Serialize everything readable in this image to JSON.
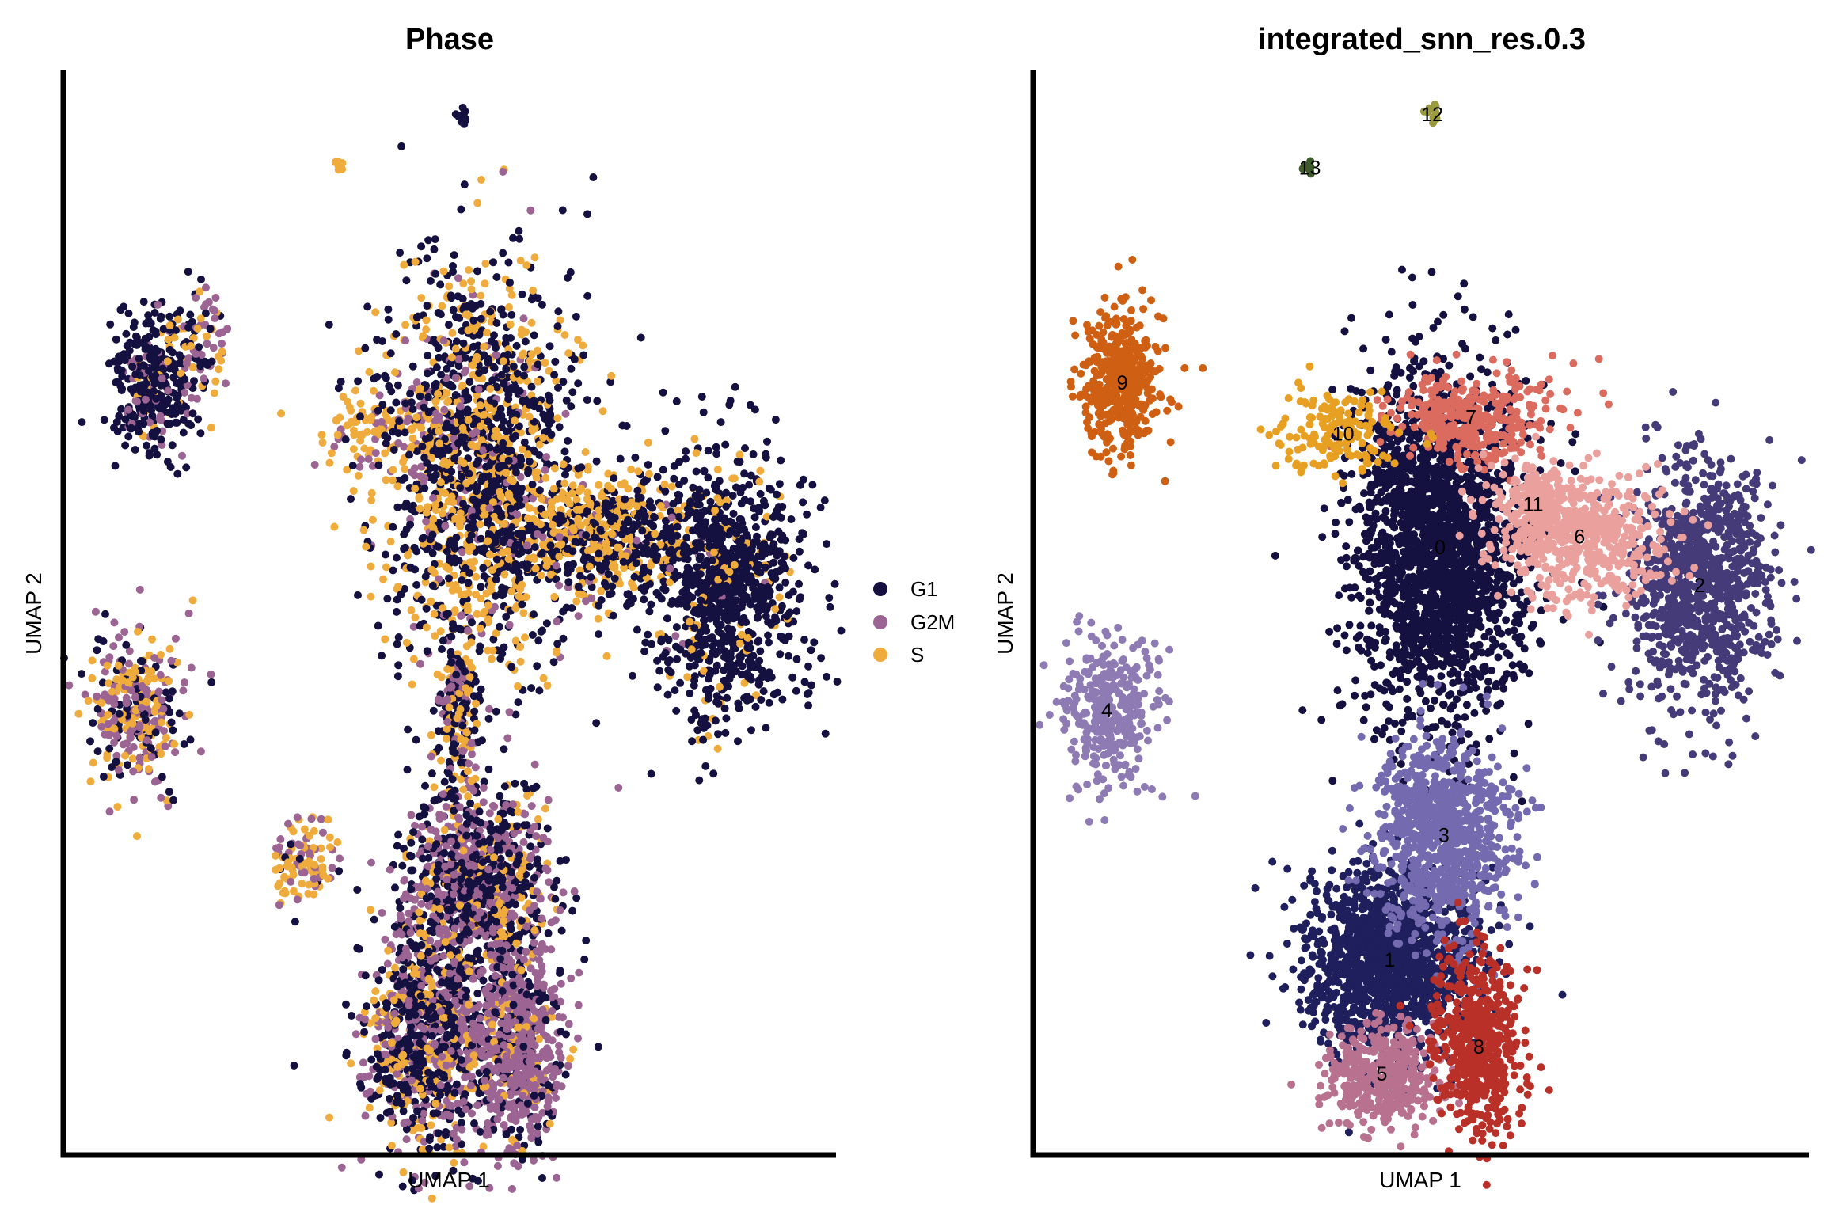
{
  "chart_data": [
    {
      "type": "scatter",
      "title": "Phase",
      "xlabel": "UMAP 1",
      "ylabel": "UMAP 2",
      "xlim": [
        0,
        100
      ],
      "ylim": [
        0,
        100
      ],
      "color_by": "Phase",
      "legend_position": "right",
      "legend": [
        {
          "label": "G1",
          "color": "#141140"
        },
        {
          "label": "G2M",
          "color": "#9c6492"
        },
        {
          "label": "S",
          "color": "#efac3c"
        }
      ],
      "regions": [
        {
          "x": 51.5,
          "y": 95.9,
          "sx": 0.5,
          "sy": 0.5,
          "n": 14,
          "mix": {
            "G1": 1.0,
            "G2M": 0,
            "S": 0
          }
        },
        {
          "x": 35.7,
          "y": 91.0,
          "sx": 0.4,
          "sy": 0.4,
          "n": 10,
          "mix": {
            "G1": 0,
            "G2M": 0,
            "S": 1.0
          }
        },
        {
          "x": 11.5,
          "y": 71.2,
          "sx": 3.0,
          "sy": 4.0,
          "n": 340,
          "mix": {
            "G1": 0.82,
            "G2M": 0.11,
            "S": 0.07
          }
        },
        {
          "x": 18.0,
          "y": 75.0,
          "sx": 2.2,
          "sy": 2.8,
          "n": 80,
          "mix": {
            "G1": 0.35,
            "G2M": 0.4,
            "S": 0.25
          }
        },
        {
          "x": 9.5,
          "y": 41.0,
          "sx": 3.6,
          "sy": 4.2,
          "n": 330,
          "mix": {
            "G1": 0.25,
            "G2M": 0.35,
            "S": 0.4
          }
        },
        {
          "x": 42.0,
          "y": 66.5,
          "sx": 5.5,
          "sy": 2.3,
          "n": 150,
          "mix": {
            "G1": 0.05,
            "G2M": 0.3,
            "S": 0.65
          }
        },
        {
          "x": 54.0,
          "y": 63.5,
          "sx": 7.5,
          "sy": 11.0,
          "n": 1650,
          "mix": {
            "G1": 0.58,
            "G2M": 0.07,
            "S": 0.35
          }
        },
        {
          "x": 70.5,
          "y": 57.0,
          "sx": 7.0,
          "sy": 3.4,
          "n": 550,
          "mix": {
            "G1": 0.55,
            "G2M": 0.05,
            "S": 0.4
          }
        },
        {
          "x": 86.0,
          "y": 52.5,
          "sx": 5.5,
          "sy": 7.0,
          "n": 950,
          "mix": {
            "G1": 0.9,
            "G2M": 0.01,
            "S": 0.09
          }
        },
        {
          "x": 51.0,
          "y": 41.0,
          "sx": 1.7,
          "sy": 4.5,
          "n": 220,
          "mix": {
            "G1": 0.4,
            "G2M": 0.3,
            "S": 0.3
          }
        },
        {
          "x": 53.5,
          "y": 24.0,
          "sx": 5.6,
          "sy": 5.5,
          "n": 1050,
          "mix": {
            "G1": 0.5,
            "G2M": 0.35,
            "S": 0.15
          }
        },
        {
          "x": 47.0,
          "y": 10.0,
          "sx": 4.5,
          "sy": 5.5,
          "n": 900,
          "mix": {
            "G1": 0.45,
            "G2M": 0.33,
            "S": 0.22
          }
        },
        {
          "x": 58.5,
          "y": 10.0,
          "sx": 3.6,
          "sy": 5.5,
          "n": 700,
          "mix": {
            "G1": 0.2,
            "G2M": 0.7,
            "S": 0.1
          }
        },
        {
          "x": 31.0,
          "y": 27.0,
          "sx": 2.2,
          "sy": 2.5,
          "n": 110,
          "mix": {
            "G1": 0.05,
            "G2M": 0.3,
            "S": 0.65
          }
        }
      ]
    },
    {
      "type": "scatter",
      "title": "integrated_snn_res.0.3",
      "xlabel": "UMAP 1",
      "ylabel": "UMAP 2",
      "xlim": [
        0,
        100
      ],
      "ylim": [
        0,
        100
      ],
      "color_by": "cluster",
      "legend_position": "none",
      "clusters": [
        {
          "label": "0",
          "x": 52.5,
          "y": 56.0,
          "sx": 6.5,
          "sy": 9.5,
          "n": 2100,
          "color": "#141140"
        },
        {
          "label": "1",
          "x": 46.0,
          "y": 18.0,
          "sx": 6.5,
          "sy": 4.8,
          "n": 1300,
          "color": "#1e1f5c"
        },
        {
          "label": "2",
          "x": 86.0,
          "y": 52.5,
          "sx": 5.5,
          "sy": 7.0,
          "n": 950,
          "color": "#453b79"
        },
        {
          "label": "3",
          "x": 53.0,
          "y": 29.5,
          "sx": 5.0,
          "sy": 5.5,
          "n": 950,
          "color": "#746ab0"
        },
        {
          "label": "4",
          "x": 9.5,
          "y": 41.0,
          "sx": 3.6,
          "sy": 4.2,
          "n": 330,
          "color": "#8e7bb4"
        },
        {
          "label": "5",
          "x": 45.0,
          "y": 7.5,
          "sx": 4.2,
          "sy": 2.8,
          "n": 400,
          "color": "#b8718f"
        },
        {
          "label": "6",
          "x": 70.5,
          "y": 57.0,
          "sx": 6.5,
          "sy": 3.2,
          "n": 550,
          "color": "#eaa09d"
        },
        {
          "label": "7",
          "x": 56.5,
          "y": 68.0,
          "sx": 6.5,
          "sy": 2.6,
          "n": 350,
          "color": "#dc6b5f"
        },
        {
          "label": "8",
          "x": 57.5,
          "y": 10.0,
          "sx": 3.4,
          "sy": 5.0,
          "n": 550,
          "color": "#b93028"
        },
        {
          "label": "9",
          "x": 11.5,
          "y": 71.2,
          "sx": 3.2,
          "sy": 4.0,
          "n": 400,
          "color": "#cf5f12"
        },
        {
          "label": "10",
          "x": 40.0,
          "y": 66.5,
          "sx": 5.0,
          "sy": 2.3,
          "n": 150,
          "color": "#e7a021"
        },
        {
          "label": "11",
          "x": 64.5,
          "y": 60.0,
          "sx": 3.5,
          "sy": 2.5,
          "n": 160,
          "color": "#eaa09d"
        },
        {
          "label": "12",
          "x": 51.5,
          "y": 95.9,
          "sx": 0.6,
          "sy": 0.5,
          "n": 14,
          "color": "#9b9a3e"
        },
        {
          "label": "13",
          "x": 35.7,
          "y": 91.0,
          "sx": 0.5,
          "sy": 0.4,
          "n": 10,
          "color": "#3f5b2c"
        }
      ]
    }
  ]
}
